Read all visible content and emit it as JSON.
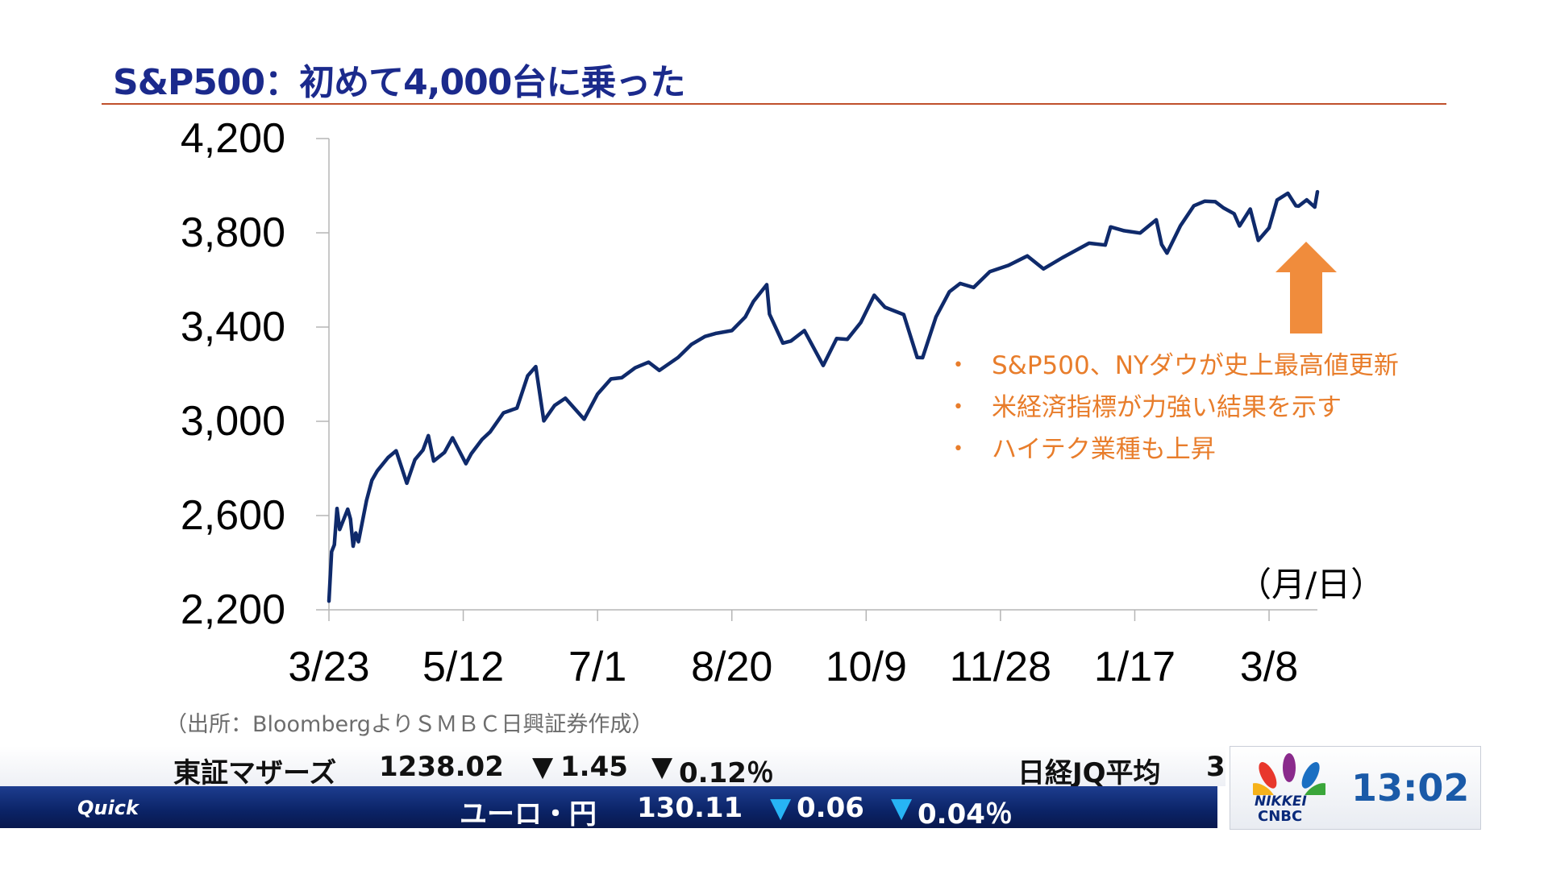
{
  "title": "S&P500：初めて4,000台に乗った",
  "unit_label": "（月/日）",
  "source": "（出所：BloombergよりＳＭＢＣ日興証券作成）",
  "bullets": [
    "S&P500、NYダウが史上最高値更新",
    "米経済指標が力強い結果を示す",
    "ハイテク業種も上昇"
  ],
  "bullet_marker": "•",
  "colors": {
    "title": "#1b2a8c",
    "title_rule": "#c0502b",
    "line": "#0f2a6b",
    "bullets": "#e87d2b",
    "arrow": "#f08c3c",
    "ticker_bar": "#0b2366",
    "down_marker": "#1aa3e8"
  },
  "annotation_icon": "up-arrow-icon",
  "ticker": {
    "top": {
      "name": "東証マザーズ",
      "value": "1238.02",
      "change_marker": "▼",
      "change": "1.45",
      "pct_marker": "▼",
      "pct": "0.12％",
      "next_name": "日経JQ平均",
      "next_value_partial": "3"
    },
    "bottom": {
      "brand": "Quick",
      "name": "ユーロ・円",
      "value": "130.11",
      "change_marker": "▼",
      "change": "0.06",
      "pct_marker": "▼",
      "pct": "0.04％"
    }
  },
  "logo": {
    "icon": "nbc-peacock-icon",
    "line1": "NIKKEI",
    "line2": "CNBC",
    "time": "13:02"
  },
  "chart_data": {
    "type": "line",
    "title": "S&P500：初めて4,000台に乗った",
    "xlabel": "（月/日）",
    "ylabel": "",
    "ylim": [
      2200,
      4200
    ],
    "yticks": [
      2200,
      2600,
      3000,
      3400,
      3800,
      4200
    ],
    "ytick_labels": [
      "2,200",
      "2,600",
      "3,000",
      "3,400",
      "3,800",
      "4,200"
    ],
    "xlim": [
      "2020-03-23",
      "2021-03-26"
    ],
    "xticks": [
      "2020-03-23",
      "2020-05-12",
      "2020-07-01",
      "2020-08-20",
      "2020-10-09",
      "2020-11-28",
      "2021-01-17",
      "2021-03-08"
    ],
    "xtick_labels": [
      "3/23",
      "5/12",
      "7/1",
      "8/20",
      "10/9",
      "11/28",
      "1/17",
      "3/8"
    ],
    "grid": false,
    "legend": "none",
    "series": [
      {
        "x": [
          "2020-03-23",
          "2020-03-24",
          "2020-03-25",
          "2020-03-26",
          "2020-03-27",
          "2020-03-30",
          "2020-03-31",
          "2020-04-01",
          "2020-04-02",
          "2020-04-03",
          "2020-04-06",
          "2020-04-08",
          "2020-04-10",
          "2020-04-14",
          "2020-04-17",
          "2020-04-21",
          "2020-04-24",
          "2020-04-27",
          "2020-04-29",
          "2020-05-01",
          "2020-05-05",
          "2020-05-08",
          "2020-05-13",
          "2020-05-15",
          "2020-05-19",
          "2020-05-22",
          "2020-05-27",
          "2020-06-01",
          "2020-06-05",
          "2020-06-08",
          "2020-06-11",
          "2020-06-15",
          "2020-06-19",
          "2020-06-26",
          "2020-07-01",
          "2020-07-06",
          "2020-07-10",
          "2020-07-15",
          "2020-07-20",
          "2020-07-24",
          "2020-07-31",
          "2020-08-05",
          "2020-08-10",
          "2020-08-14",
          "2020-08-20",
          "2020-08-25",
          "2020-08-28",
          "2020-09-02",
          "2020-09-03",
          "2020-09-08",
          "2020-09-11",
          "2020-09-16",
          "2020-09-23",
          "2020-09-28",
          "2020-10-02",
          "2020-10-07",
          "2020-10-12",
          "2020-10-16",
          "2020-10-23",
          "2020-10-28",
          "2020-10-30",
          "2020-11-04",
          "2020-11-09",
          "2020-11-13",
          "2020-11-18",
          "2020-11-24",
          "2020-12-01",
          "2020-12-08",
          "2020-12-14",
          "2020-12-21",
          "2020-12-31",
          "2021-01-06",
          "2021-01-08",
          "2021-01-13",
          "2021-01-19",
          "2021-01-25",
          "2021-01-27",
          "2021-01-29",
          "2021-02-03",
          "2021-02-08",
          "2021-02-12",
          "2021-02-16",
          "2021-02-19",
          "2021-02-23",
          "2021-02-25",
          "2021-03-01",
          "2021-03-04",
          "2021-03-08",
          "2021-03-11",
          "2021-03-15",
          "2021-03-18",
          "2021-03-19",
          "2021-03-22",
          "2021-03-25",
          "2021-03-26"
        ],
        "values": [
          2237,
          2447,
          2476,
          2630,
          2541,
          2627,
          2585,
          2470,
          2526,
          2489,
          2664,
          2750,
          2790,
          2846,
          2875,
          2737,
          2837,
          2878,
          2939,
          2831,
          2868,
          2930,
          2820,
          2863,
          2923,
          2955,
          3036,
          3056,
          3193,
          3232,
          3002,
          3067,
          3098,
          3009,
          3116,
          3180,
          3185,
          3227,
          3251,
          3216,
          3271,
          3327,
          3360,
          3373,
          3385,
          3443,
          3508,
          3580,
          3455,
          3332,
          3341,
          3385,
          3237,
          3351,
          3348,
          3419,
          3535,
          3484,
          3453,
          3271,
          3270,
          3443,
          3550,
          3585,
          3568,
          3635,
          3662,
          3702,
          3647,
          3694,
          3756,
          3748,
          3825,
          3809,
          3799,
          3855,
          3750,
          3714,
          3830,
          3915,
          3934,
          3932,
          3906,
          3881,
          3829,
          3901,
          3768,
          3821,
          3939,
          3968,
          3915,
          3913,
          3940,
          3909,
          3974
        ]
      }
    ]
  }
}
